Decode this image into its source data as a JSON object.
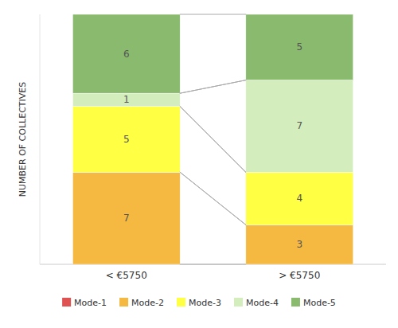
{
  "chart_data": {
    "type": "bar",
    "stacked": true,
    "categories": [
      "< €5750",
      "> €5750"
    ],
    "ylabel": "NUMBER OF COLLECTIVES",
    "series": [
      {
        "name": "Mode-1",
        "color": "#e05252",
        "values": [
          0,
          0
        ]
      },
      {
        "name": "Mode-2",
        "color": "#f5b942",
        "values": [
          7,
          3
        ]
      },
      {
        "name": "Mode-3",
        "color": "#ffff44",
        "values": [
          5,
          4
        ]
      },
      {
        "name": "Mode-4",
        "color": "#d4edbc",
        "values": [
          1,
          7
        ]
      },
      {
        "name": "Mode-5",
        "color": "#8aba6e",
        "values": [
          6,
          5
        ]
      }
    ],
    "ylim": [
      0,
      19
    ],
    "tick_labels": "x",
    "data_labels": true,
    "legend": "bottom",
    "grid": false
  }
}
